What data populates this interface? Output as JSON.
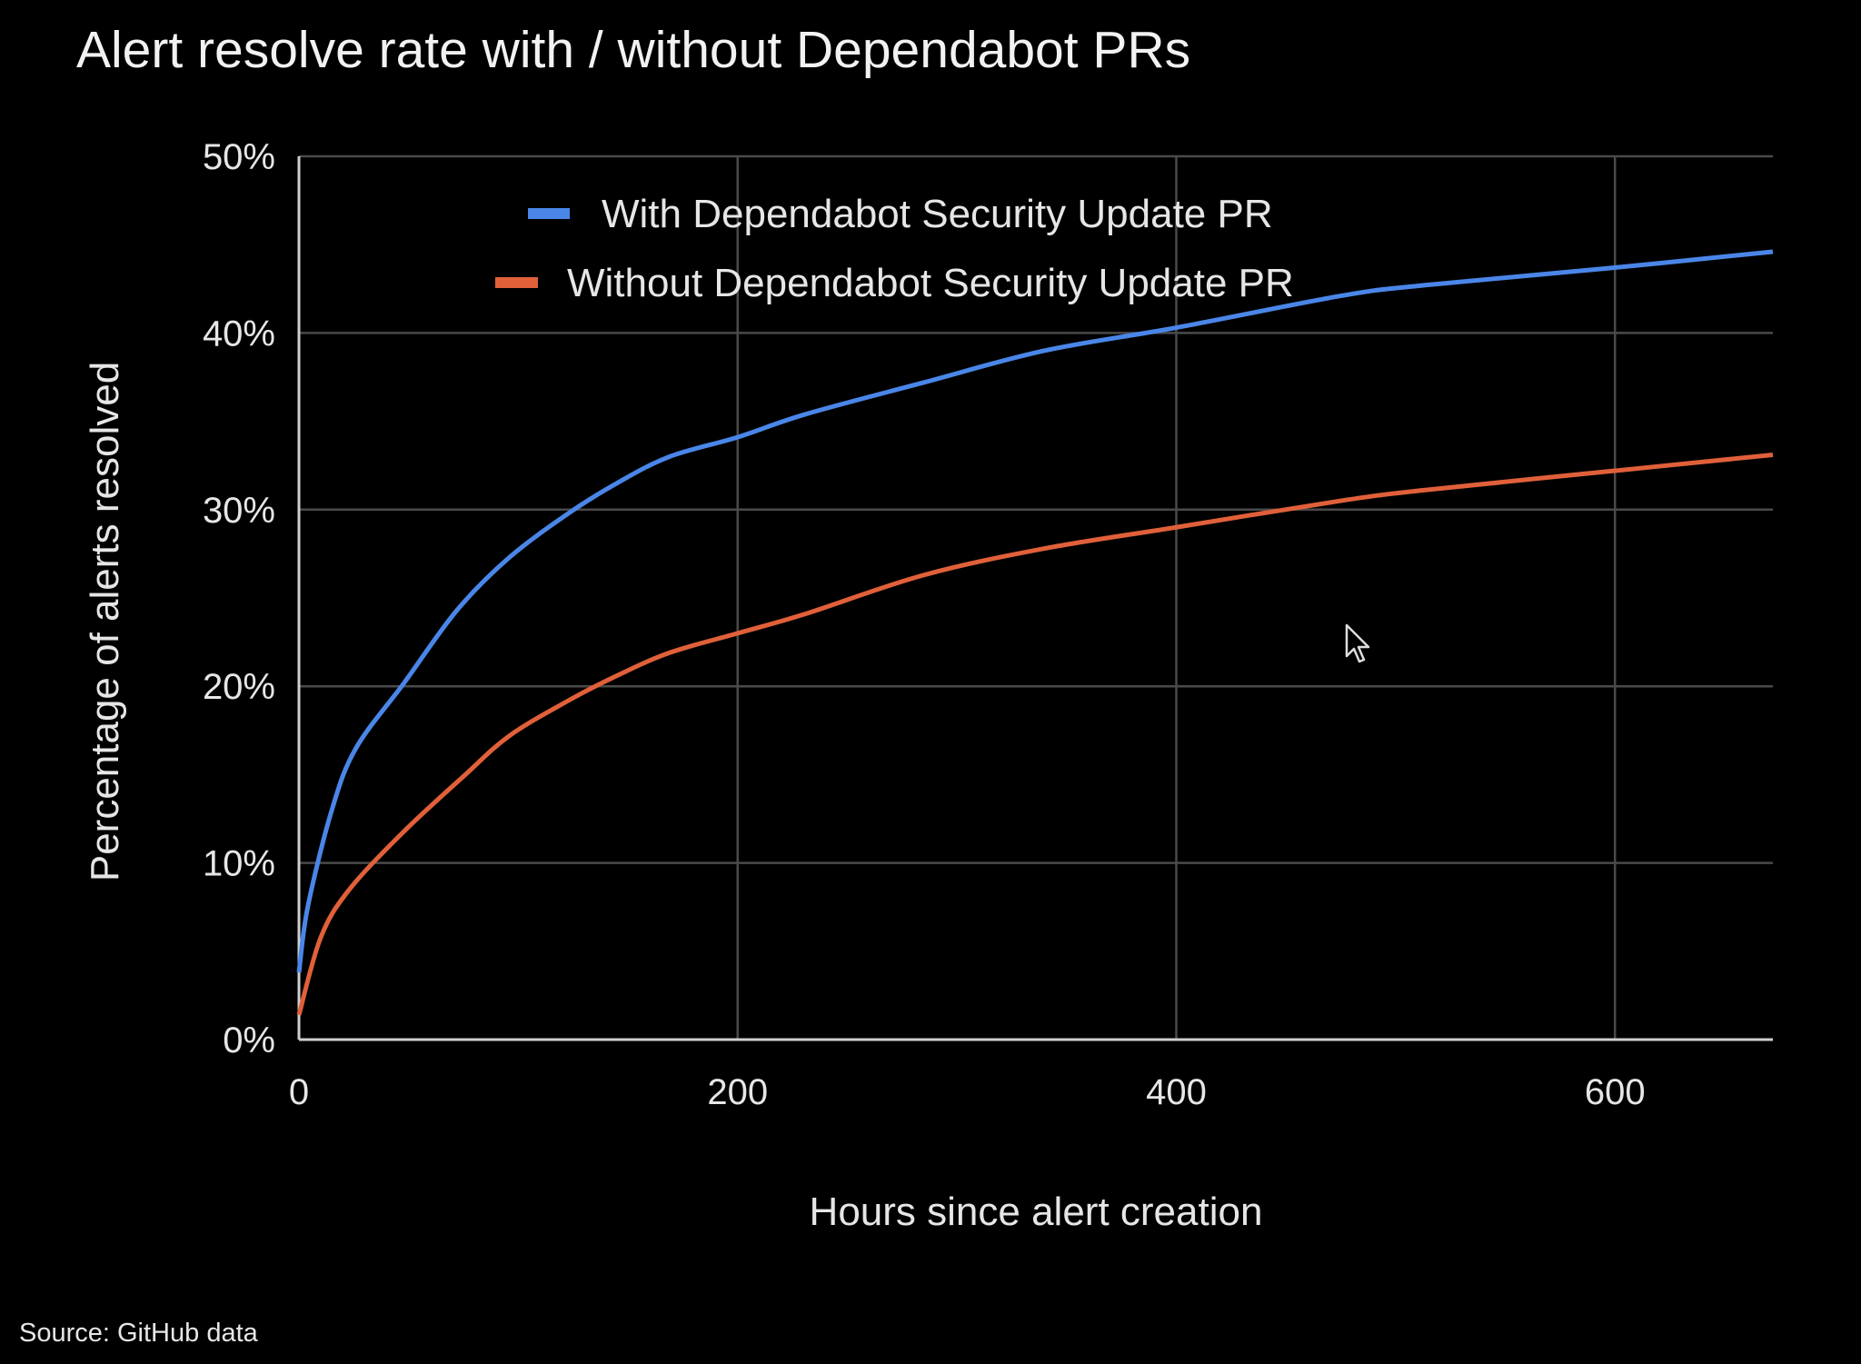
{
  "chart_data": {
    "type": "line",
    "title": "Alert resolve rate with / without Dependabot PRs",
    "xlabel": "Hours since alert creation",
    "ylabel": "Percentage of alerts resolved",
    "xlim": [
      0,
      672
    ],
    "ylim": [
      0,
      50
    ],
    "x_ticks": [
      0,
      200,
      400,
      600
    ],
    "y_ticks": [
      0,
      10,
      20,
      30,
      40,
      50
    ],
    "y_tick_labels": [
      "0%",
      "10%",
      "20%",
      "30%",
      "40%",
      "50%"
    ],
    "x_tick_labels": [
      "0",
      "200",
      "400",
      "600"
    ],
    "grid": true,
    "legend_position": "top",
    "series": [
      {
        "name": "With Dependabot Security Update PR",
        "color": "#4a86e8",
        "x": [
          0,
          4,
          15,
          26,
          48,
          72,
          96,
          123,
          145,
          169,
          200,
          231,
          285,
          340,
          400,
          475,
          513,
          600,
          672
        ],
        "y": [
          3.8,
          7.5,
          13,
          16.5,
          20.2,
          24.3,
          27.3,
          29.8,
          31.5,
          33,
          34.1,
          35.4,
          37.2,
          39,
          40.3,
          42.1,
          42.7,
          43.7,
          44.6
        ]
      },
      {
        "name": "Without Dependabot Security Update PR",
        "color": "#e0603a",
        "x": [
          0,
          10,
          23,
          48,
          75,
          96,
          123,
          145,
          169,
          200,
          231,
          285,
          340,
          400,
          475,
          513,
          600,
          672
        ],
        "y": [
          1.4,
          5.8,
          8.5,
          11.8,
          14.9,
          17.2,
          19.2,
          20.6,
          21.9,
          23,
          24.1,
          26.3,
          27.8,
          29,
          30.5,
          31.1,
          32.2,
          33.1
        ]
      }
    ]
  },
  "source": "Source: GitHub data"
}
